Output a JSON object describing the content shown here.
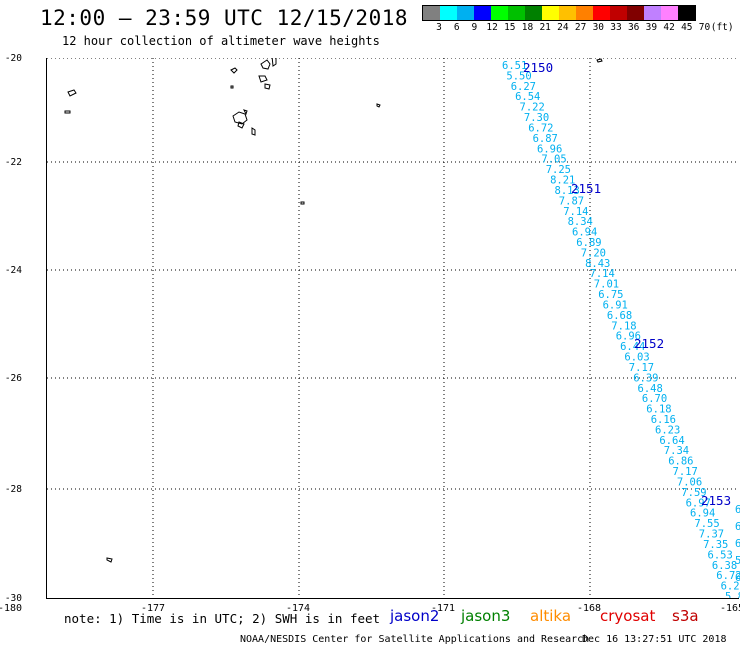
{
  "header": {
    "title": "12:00 — 23:59 UTC 12/15/2018",
    "subtitle": "12 hour collection of altimeter wave heights"
  },
  "colorbar": {
    "colors": [
      "#808080",
      "#00ffff",
      "#00b0f0",
      "#0000ff",
      "#00ff00",
      "#00c000",
      "#008000",
      "#ffff00",
      "#ffc000",
      "#ff8000",
      "#ff0000",
      "#c00000",
      "#800000",
      "#c080ff",
      "#ff80ff",
      "#000000"
    ],
    "labels": [
      "3",
      "6",
      "9",
      "12",
      "15",
      "18",
      "21",
      "24",
      "27",
      "30",
      "33",
      "36",
      "39",
      "42",
      "45",
      "70",
      "(ft)"
    ]
  },
  "axes": {
    "y_labels": [
      "-20",
      "-22",
      "-24",
      "-26",
      "-28",
      "-30"
    ],
    "x_labels": [
      "-180",
      "-177",
      "-174",
      "-171",
      "-168",
      "-165"
    ]
  },
  "track": {
    "color": "#00b0f0",
    "time_label_color": "#0000c8",
    "time_labels": [
      "2150",
      "2151",
      "2152",
      "2153"
    ],
    "values": [
      "6.51",
      "5.50",
      "6.27",
      "6.54",
      "7.22",
      "7.30",
      "6.72",
      "6.87",
      "6.96",
      "7.05",
      "7.25",
      "8.21",
      "8.13",
      "7.87",
      "7.14",
      "8.34",
      "6.94",
      "6.89",
      "7.20",
      "8.43",
      "7.14",
      "7.01",
      "6.75",
      "6.91",
      "6.68",
      "7.18",
      "6.96",
      "6.44",
      "6.03",
      "7.17",
      "6.39",
      "6.48",
      "6.70",
      "6.18",
      "6.16",
      "6.23",
      "6.64",
      "7.34",
      "6.86",
      "7.17",
      "7.06",
      "7.59",
      "6.97",
      "6.94",
      "7.55",
      "7.37",
      "7.35",
      "6.53",
      "6.38",
      "6.72",
      "6.28",
      "5.83"
    ],
    "edge_values": [
      "6",
      "6",
      "6",
      "5",
      "6"
    ]
  },
  "footer": {
    "note": "note: 1) Time is in UTC; 2) SWH is in feet",
    "satellites": [
      {
        "name": "jason2",
        "color": "#0000c8"
      },
      {
        "name": "jason3",
        "color": "#008000"
      },
      {
        "name": "altika",
        "color": "#ff8c00"
      },
      {
        "name": "cryosat",
        "color": "#e00000"
      },
      {
        "name": "s3a",
        "color": "#c00000"
      }
    ],
    "credit": "NOAA/NESDIS Center for Satellite Applications and Research",
    "timestamp": "Dec 16 13:27:51 UTC 2018"
  }
}
